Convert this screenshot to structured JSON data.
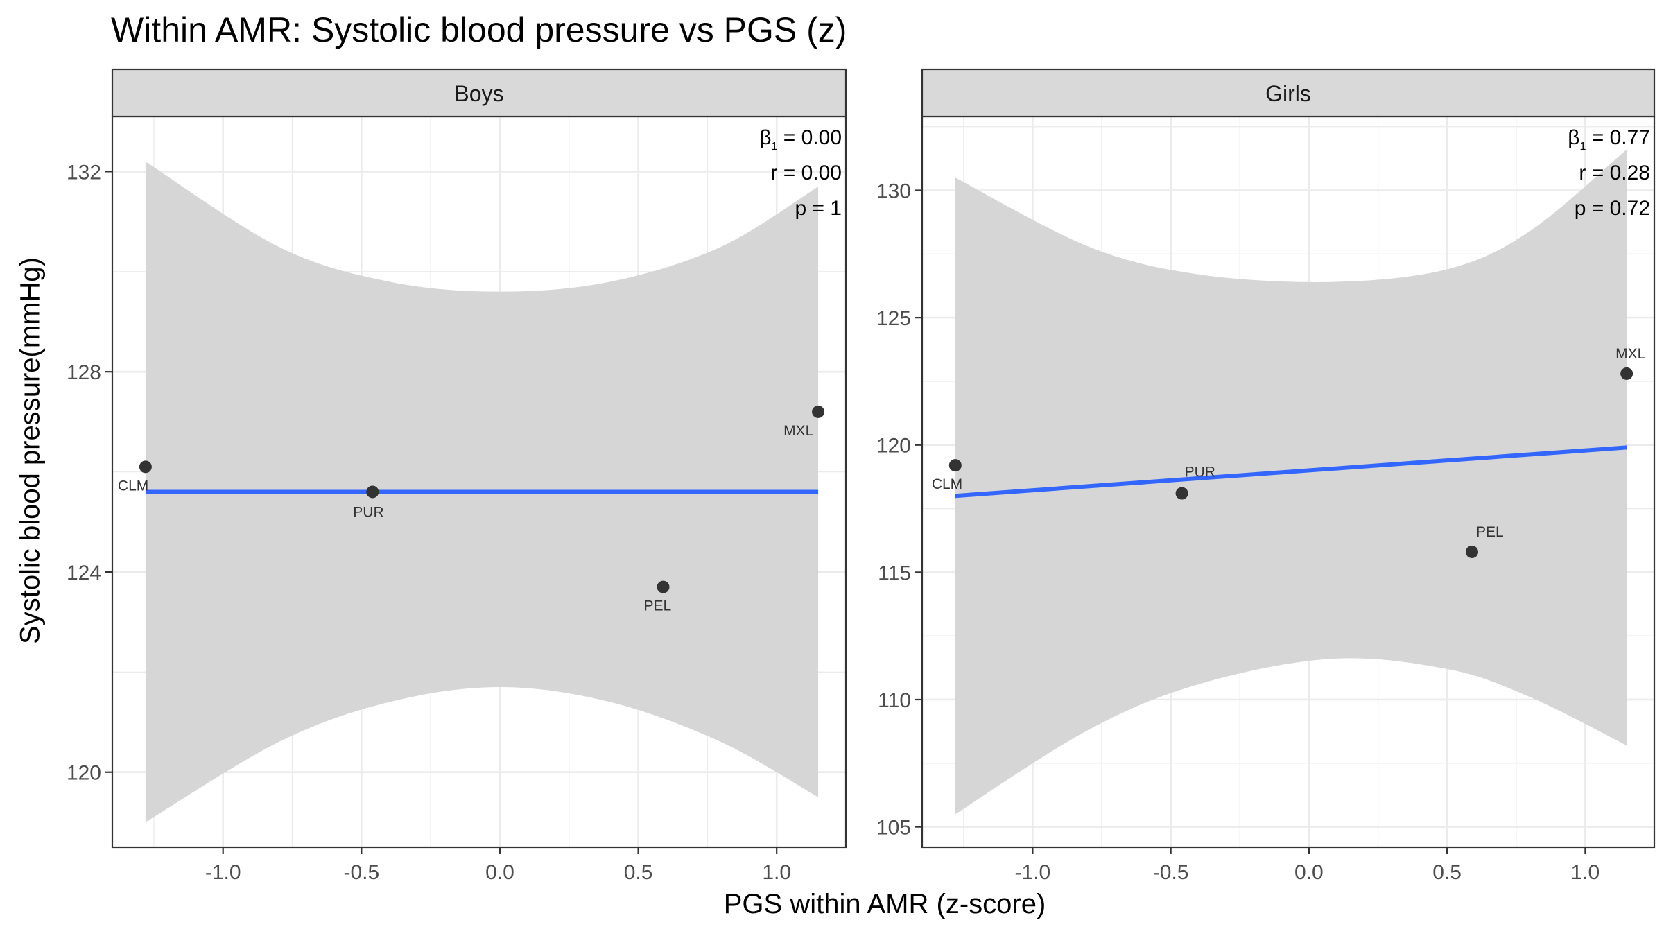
{
  "title": "Within AMR: Systolic blood pressure vs PGS (z)",
  "xlabel": "PGS within AMR (z-score)",
  "ylabel": "Systolic blood pressure(mmHg)",
  "colors": {
    "strip_fill": "#d9d9d9",
    "ribbon_fill": "#d6d6d6",
    "fit_line": "#3366ff",
    "point": "#333333",
    "grid": "#ebebeb",
    "border": "#333333"
  },
  "chart_data": [
    {
      "type": "scatter",
      "panel": "Boys",
      "xlim": [
        -1.4,
        1.25
      ],
      "ylim": [
        118.5,
        133.1
      ],
      "x_ticks": [
        -1.0,
        -0.5,
        0.0,
        0.5,
        1.0
      ],
      "x_tick_labels": [
        "-1.0",
        "-0.5",
        "0.0",
        "0.5",
        "1.0"
      ],
      "y_ticks": [
        120,
        124,
        128,
        132
      ],
      "y_tick_labels": [
        "120",
        "124",
        "128",
        "132"
      ],
      "grid": true,
      "points": [
        {
          "label": "CLM",
          "x": -1.28,
          "y": 126.1
        },
        {
          "label": "PUR",
          "x": -0.46,
          "y": 125.6
        },
        {
          "label": "PEL",
          "x": 0.59,
          "y": 123.7
        },
        {
          "label": "MXL",
          "x": 1.15,
          "y": 127.2
        }
      ],
      "fit": {
        "x": [
          -1.28,
          1.15
        ],
        "y": [
          125.6,
          125.6
        ]
      },
      "ribbon": {
        "x": [
          -1.28,
          -0.8,
          -0.4,
          0.0,
          0.4,
          0.8,
          1.15
        ],
        "upper": [
          132.2,
          130.5,
          129.8,
          129.6,
          129.8,
          130.5,
          131.7
        ],
        "lower": [
          119.0,
          120.6,
          121.4,
          121.7,
          121.4,
          120.6,
          119.5
        ]
      },
      "annotation": {
        "beta": "= 0.00",
        "r": "r = 0.00",
        "p": "p = 1"
      }
    },
    {
      "type": "scatter",
      "panel": "Girls",
      "xlim": [
        -1.4,
        1.25
      ],
      "ylim": [
        104.2,
        132.9
      ],
      "x_ticks": [
        -1.0,
        -0.5,
        0.0,
        0.5,
        1.0
      ],
      "x_tick_labels": [
        "-1.0",
        "-0.5",
        "0.0",
        "0.5",
        "1.0"
      ],
      "y_ticks": [
        105,
        110,
        115,
        120,
        125,
        130
      ],
      "y_tick_labels": [
        "105",
        "110",
        "115",
        "120",
        "125",
        "130"
      ],
      "grid": true,
      "points": [
        {
          "label": "CLM",
          "x": -1.28,
          "y": 119.2
        },
        {
          "label": "PUR",
          "x": -0.46,
          "y": 118.1
        },
        {
          "label": "PEL",
          "x": 0.59,
          "y": 115.8
        },
        {
          "label": "MXL",
          "x": 1.15,
          "y": 122.8
        }
      ],
      "fit": {
        "x": [
          -1.28,
          1.15
        ],
        "y": [
          118.0,
          119.9
        ]
      },
      "ribbon": {
        "x": [
          -1.28,
          -0.8,
          -0.4,
          0.08,
          0.5,
          0.8,
          1.15
        ],
        "upper": [
          130.5,
          127.8,
          126.7,
          126.4,
          126.9,
          128.4,
          131.6
        ],
        "lower": [
          105.5,
          108.8,
          110.6,
          111.6,
          111.2,
          110.1,
          108.2
        ]
      },
      "annotation": {
        "beta": "= 0.77",
        "r": "r = 0.28",
        "p": "p = 0.72"
      }
    }
  ]
}
